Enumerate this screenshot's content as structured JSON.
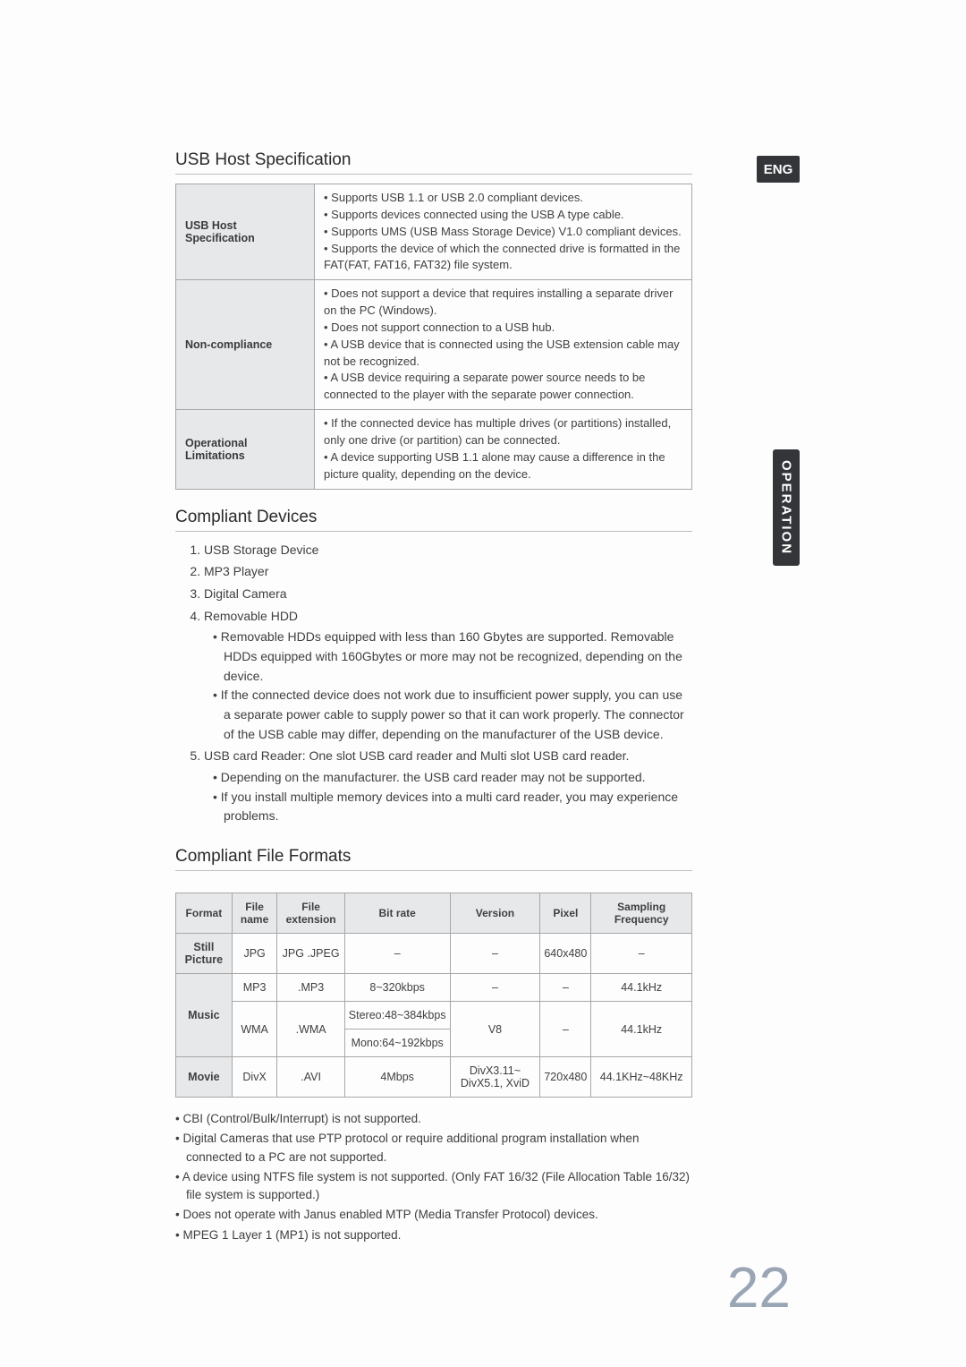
{
  "badges": {
    "lang": "ENG",
    "side": "OPERATION",
    "page": "22"
  },
  "sections": {
    "spec_title": "USB Host Specification",
    "devices_title": "Compliant Devices",
    "formats_title": "Compliant File Formats"
  },
  "spec_table": {
    "rows": [
      {
        "head": "USB Host Specification",
        "items": [
          "Supports USB 1.1 or USB 2.0 compliant devices.",
          "Supports devices connected using the USB A type cable.",
          "Supports UMS (USB Mass Storage Device) V1.0 compliant devices.",
          "Supports the device of which the connected drive is formatted in the FAT(FAT, FAT16, FAT32) file system."
        ]
      },
      {
        "head": "Non-compliance",
        "items": [
          "Does not support a device that requires installing a separate driver on the PC (Windows).",
          "Does not support connection to a USB hub.",
          "A USB device that is connected using the USB extension cable may not be recognized.",
          "A USB device requiring a separate power source needs to be connected to the player with the separate power connection."
        ]
      },
      {
        "head": "Operational Limitations",
        "items": [
          "If the connected device has multiple drives (or partitions) installed, only one drive (or partition) can be connected.",
          "A device supporting USB 1.1 alone may cause a difference in the picture quality, depending on the device."
        ]
      }
    ]
  },
  "devices": {
    "d1": "USB Storage Device",
    "d2": "MP3 Player",
    "d3": "Digital Camera",
    "d4": "Removable HDD",
    "d4_sub": [
      "Removable HDDs equipped with less than 160 Gbytes are supported. Removable HDDs equipped with 160Gbytes or more may not be recognized, depending on the device.",
      "If the connected device does not work due to insufficient power supply, you can use a separate power cable to supply power so that it can work properly. The connector of the USB cable may differ, depending on the manufacturer of the USB device."
    ],
    "d5": "USB card Reader: One slot USB card reader and Multi slot USB card reader.",
    "d5_sub": [
      "Depending on the manufacturer. the USB card reader may not be supported.",
      "If you install multiple memory devices into a multi card reader, you may experience problems."
    ]
  },
  "fmt": {
    "headers": [
      "Format",
      "File name",
      "File extension",
      "Bit rate",
      "Version",
      "Pixel",
      "Sampling Frequency"
    ],
    "still": {
      "rh": "Still Picture",
      "name": "JPG",
      "ext": "JPG .JPEG",
      "bit": "–",
      "ver": "–",
      "px": "640x480",
      "sf": "–"
    },
    "music": {
      "rh": "Music",
      "mp3": {
        "name": "MP3",
        "ext": ".MP3",
        "bit": "8~320kbps",
        "ver": "–",
        "px": "–",
        "sf": "44.1kHz"
      },
      "wma": {
        "name": "WMA",
        "ext": ".WMA",
        "bit1": "Stereo:48~384kbps",
        "bit2": "Mono:64~192kbps",
        "ver": "V8",
        "px": "–",
        "sf": "44.1kHz"
      }
    },
    "movie": {
      "rh": "Movie",
      "name": "DivX",
      "ext": ".AVI",
      "bit": "4Mbps",
      "ver": "DivX3.11~ DivX5.1, XviD",
      "px": "720x480",
      "sf": "44.1KHz~48KHz"
    }
  },
  "notes": [
    "CBI (Control/Bulk/Interrupt) is not supported.",
    "Digital Cameras that use PTP protocol or require additional program installation when connected to a PC are not supported.",
    "A device using NTFS file system is not supported. (Only FAT 16/32 (File Allocation Table 16/32) file system is supported.)",
    "Does not operate with Janus enabled MTP (Media Transfer Protocol) devices.",
    "MPEG 1 Layer 1 (MP1) is not supported."
  ]
}
